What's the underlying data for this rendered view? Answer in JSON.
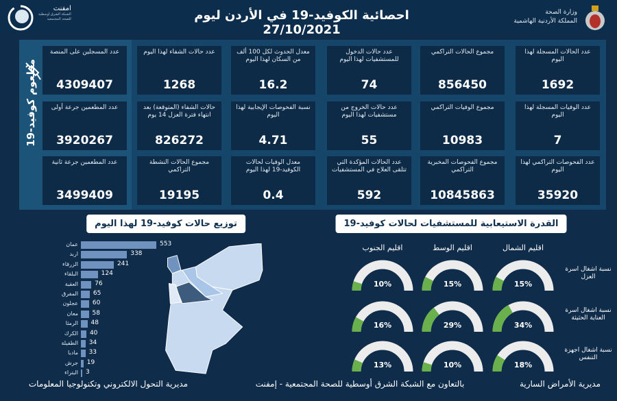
{
  "header": {
    "title": "احصائية الكوفيد-19 في الأردن ليوم 27/10/2021",
    "ministry_line1": "وزارة الصحة",
    "ministry_line2": "المملكة الأردنية الهاشمية",
    "partner_name": "امفنت",
    "partner_sub1": "الشبكة الشرق اوسطية",
    "partner_sub2": "للصحة المجتمعية"
  },
  "vaccine": {
    "label": "مطعوم كوفيد-19",
    "cards": [
      {
        "label": "عدد المسجلين على المنصة",
        "value": "4309407"
      },
      {
        "label": "عدد المطعمين جرعة أولى",
        "value": "3920267"
      },
      {
        "label": "عدد المطعمين جرعة ثانية",
        "value": "3499409"
      }
    ]
  },
  "stats": [
    [
      {
        "label": "عدد الحالات المسجلة لهذا اليوم",
        "value": "1692"
      },
      {
        "label": "مجموع الحالات التراكمي",
        "value": "856450"
      },
      {
        "label": "عدد حالات الدخول للمستشفيات لهذا اليوم",
        "value": "74"
      },
      {
        "label": "معدل الحدوث لكل 100 ألف من السكان لهذا اليوم",
        "value": "16.2"
      },
      {
        "label": "عدد حالات الشفاء لهذا اليوم",
        "value": "1268"
      }
    ],
    [
      {
        "label": "عدد الوفيات المسجلة لهذا اليوم",
        "value": "7"
      },
      {
        "label": "مجموع الوفيات التراكمي",
        "value": "10983"
      },
      {
        "label": "عدد حالات الخروج من مستشفيات لهذا اليوم",
        "value": "55"
      },
      {
        "label": "نسبة الفحوصات الإيجابية لهذا اليوم",
        "value": "4.71"
      },
      {
        "label": "حالات الشفاء (المتوقعة) بعد انتهاء فترة العزل 14 يوم",
        "value": "826272"
      }
    ],
    [
      {
        "label": "عدد الفحوصات التراكمي لهذا اليوم",
        "value": "35920"
      },
      {
        "label": "مجموع الفحوصات المخبرية التراكمي",
        "value": "10845863"
      },
      {
        "label": "عدد الحالات المؤكدة التي تتلقى العلاج في المستشفيات",
        "value": "592"
      },
      {
        "label": "معدل الوفيات لحالات الكوفيد-19 لهذا اليوم",
        "value": "0.4"
      },
      {
        "label": "مجموع الحالات النشطة التراكمي",
        "value": "19195"
      }
    ]
  ],
  "chart_data": [
    {
      "type": "bar",
      "orientation": "horizontal",
      "title": "توزيع حالات كوفيد-19 لهذا اليوم",
      "categories": [
        "عمان",
        "اربد",
        "الزرقاء",
        "البلقاء",
        "العقبة",
        "المفرق",
        "عجلون",
        "معان",
        "الرمثا",
        "الكرك",
        "الطفيلة",
        "مادبا",
        "جرش",
        "البتراء"
      ],
      "values": [
        553,
        338,
        241,
        124,
        76,
        65,
        60,
        58,
        48,
        40,
        34,
        33,
        19,
        3
      ],
      "color": "#6f93be"
    },
    {
      "type": "gauge",
      "title": "القدرة الاستيعابية للمستشفيات لحالات كوفيد-19",
      "regions": [
        "اقليم الشمال",
        "اقليم الوسط",
        "اقليم الجنوب"
      ],
      "rows": [
        {
          "label": "نسبة اشغال اسرة العزل",
          "values": [
            15,
            15,
            10
          ]
        },
        {
          "label": "نسبة اشغال اسرة العناية الحثيثة",
          "values": [
            34,
            29,
            16
          ]
        },
        {
          "label": "نسبة اشغال اجهزة التنفس",
          "values": [
            18,
            10,
            13
          ]
        }
      ],
      "unit": "%",
      "fill_color": "#6ab04c",
      "track_color": "#ececec"
    }
  ],
  "footer": {
    "left": "مديرية التحول الالكتروني وتكنولوجيا المعلومات",
    "center": "بالتعاون مع الشبكة الشرق أوسطية للصحة المجتمعية - إمفنت",
    "right": "مديرية الأمراض السارية"
  }
}
